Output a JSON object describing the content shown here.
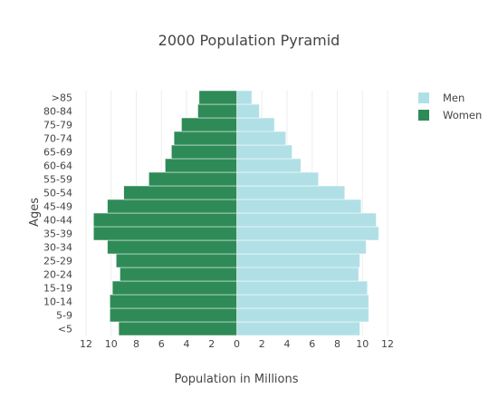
{
  "chart_data": {
    "type": "bar",
    "orientation": "horizontal",
    "title": "2000 Population Pyramid",
    "xlabel": "Population in Millions",
    "ylabel": "Ages",
    "xlim": [
      -12,
      12
    ],
    "xticks": [
      -12,
      -10,
      -8,
      -6,
      -4,
      -2,
      0,
      2,
      4,
      6,
      8,
      10,
      12
    ],
    "xtick_labels": [
      "12",
      "10",
      "8",
      "6",
      "4",
      "2",
      "0",
      "2",
      "4",
      "6",
      "8",
      "10",
      "12"
    ],
    "categories": [
      "<5",
      "5-9",
      "10-14",
      "15-19",
      "20-24",
      "25-29",
      "30-34",
      "35-39",
      "40-44",
      "45-49",
      "50-54",
      "55-59",
      "60-64",
      "65-69",
      "70-74",
      "75-79",
      "80-84",
      ">85"
    ],
    "series": [
      {
        "name": "Men",
        "color": "#B0E0E6",
        "values": [
          9.8,
          10.5,
          10.5,
          10.4,
          9.7,
          9.8,
          10.3,
          11.3,
          11.1,
          9.9,
          8.6,
          6.5,
          5.1,
          4.4,
          3.9,
          3.0,
          1.8,
          1.2
        ]
      },
      {
        "name": "Women",
        "color": "#2E8B57",
        "values": [
          -9.4,
          -10.1,
          -10.1,
          -9.9,
          -9.3,
          -9.6,
          -10.3,
          -11.4,
          -11.4,
          -10.3,
          -9.0,
          -7.0,
          -5.7,
          -5.2,
          -5.0,
          -4.4,
          -3.1,
          -3.0
        ]
      }
    ],
    "legend_position": "top-right",
    "grid": true
  }
}
